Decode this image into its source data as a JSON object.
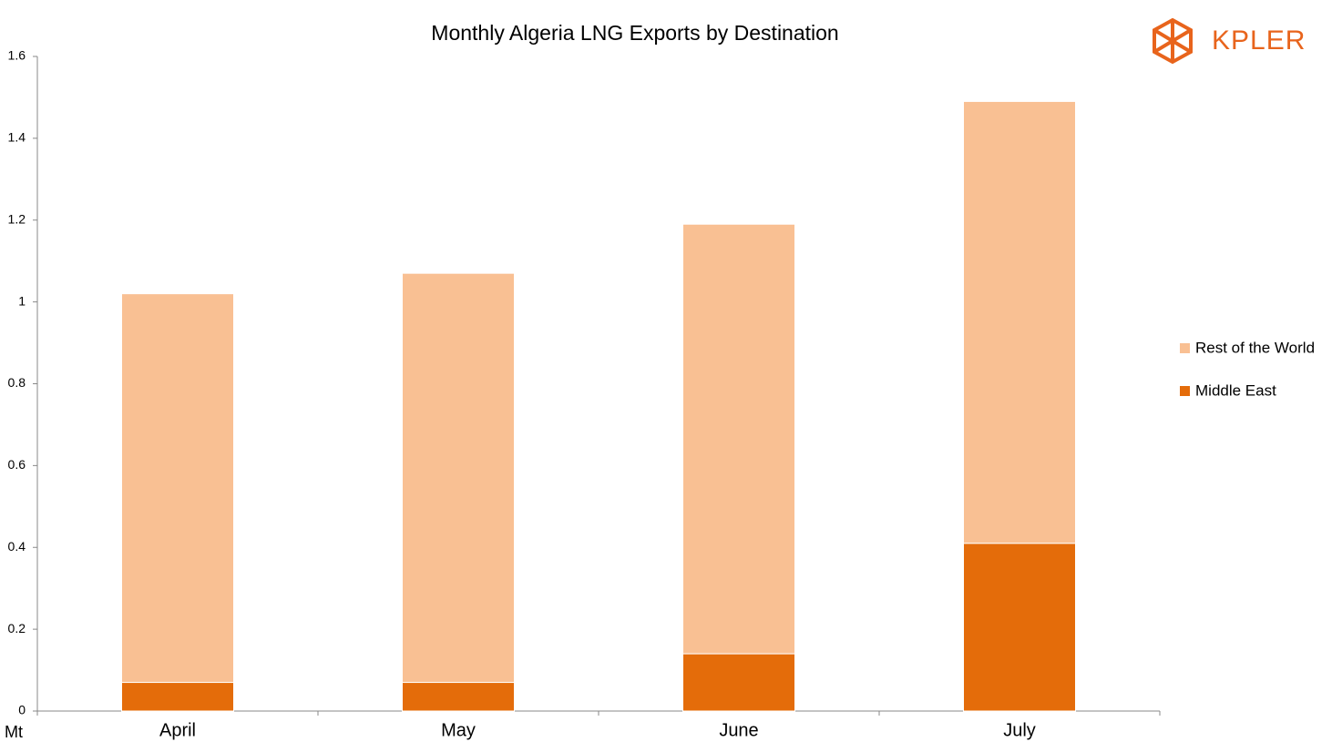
{
  "chart_data": {
    "type": "stacked_bar",
    "title": "Monthly Algeria LNG Exports by Destination",
    "logo": "KPLER",
    "y_unit": "Mt",
    "categories": [
      "April",
      "May",
      "June",
      "July"
    ],
    "series": [
      {
        "name": "Middle East",
        "color": "#e46c0a",
        "values": [
          0.07,
          0.07,
          0.14,
          0.41
        ]
      },
      {
        "name": "Rest of the World",
        "color": "#f9c093",
        "values": [
          0.95,
          1.0,
          1.05,
          1.08
        ]
      }
    ],
    "ylim": [
      0,
      1.6
    ],
    "yticks": [
      0,
      0.2,
      0.4,
      0.6,
      0.8,
      1,
      1.2,
      1.4,
      1.6
    ],
    "grid": false,
    "legend": "right"
  }
}
